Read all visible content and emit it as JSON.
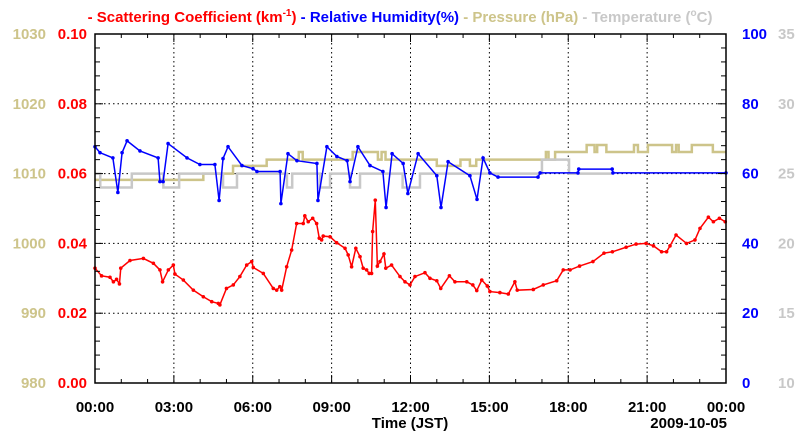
{
  "chart_data": {
    "type": "line",
    "legend_placement": "top",
    "legend": [
      {
        "prefix": "- ",
        "label": "Scattering Coefficient (km",
        "sup": "-1",
        "suffix": ")",
        "color": "#ff0000"
      },
      {
        "prefix": " - ",
        "label": "Relative Humidity(%)",
        "sup": "",
        "suffix": "",
        "color": "#0000ff"
      },
      {
        "prefix": " - ",
        "label": "Pressure (hPa)",
        "sup": "",
        "suffix": "",
        "color": "#cdc48a"
      },
      {
        "prefix": " - ",
        "label": "Temperature (",
        "sup": "o",
        "suffix": "C)",
        "color": "#c8c8c8"
      }
    ],
    "xlabel": "Time (JST)",
    "date_label": "2009-10-05",
    "x_range_hours": [
      0,
      24
    ],
    "x_ticks": [
      "00:00",
      "03:00",
      "06:00",
      "09:00",
      "12:00",
      "15:00",
      "18:00",
      "21:00",
      "00:00"
    ],
    "grid": true,
    "axes": {
      "scattering": {
        "range": [
          0,
          0.1
        ],
        "ticks": [
          "0.00",
          "0.02",
          "0.04",
          "0.06",
          "0.08",
          "0.10"
        ],
        "color": "#ff0000",
        "side": "left-inner"
      },
      "pressure": {
        "range": [
          980,
          1030
        ],
        "ticks": [
          "980",
          "990",
          "1000",
          "1010",
          "1020",
          "1030"
        ],
        "color": "#cdc48a",
        "side": "left-outer"
      },
      "humidity": {
        "range": [
          0,
          100
        ],
        "ticks": [
          "0",
          "20",
          "40",
          "60",
          "80",
          "100"
        ],
        "color": "#0000ff",
        "side": "right-inner"
      },
      "temperature": {
        "range": [
          10,
          35
        ],
        "ticks": [
          "10",
          "15",
          "20",
          "25",
          "30",
          "35"
        ],
        "color": "#c8c8c8",
        "side": "right-outer"
      }
    },
    "series": [
      {
        "name": "Pressure",
        "axis": "pressure",
        "style": "step",
        "end": 24,
        "points": [
          [
            0,
            1009.1
          ],
          [
            4.12,
            1010.0
          ],
          [
            5.25,
            1011.1
          ],
          [
            6.53,
            1012.0
          ],
          [
            7.75,
            1013.1
          ],
          [
            7.9,
            1012.0
          ],
          [
            9.8,
            1013.1
          ],
          [
            10.76,
            1012.0
          ],
          [
            10.9,
            1013.1
          ],
          [
            11.05,
            1012.0
          ],
          [
            13.0,
            1011.1
          ],
          [
            13.9,
            1012.0
          ],
          [
            14.26,
            1011.1
          ],
          [
            14.5,
            1012.0
          ],
          [
            17.15,
            1013.1
          ],
          [
            17.25,
            1012.0
          ],
          [
            17.5,
            1013.1
          ],
          [
            18.7,
            1014.1
          ],
          [
            19.0,
            1013.1
          ],
          [
            19.1,
            1014.1
          ],
          [
            19.45,
            1013.1
          ],
          [
            20.5,
            1014.1
          ],
          [
            20.65,
            1013.1
          ],
          [
            21.03,
            1014.1
          ],
          [
            21.95,
            1013.1
          ],
          [
            22.1,
            1014.1
          ],
          [
            22.2,
            1013.1
          ],
          [
            22.7,
            1014.1
          ],
          [
            23.5,
            1013.1
          ]
        ]
      },
      {
        "name": "Temperature",
        "axis": "temperature",
        "style": "step",
        "end": 19.67,
        "points": [
          [
            0,
            25.0
          ],
          [
            0.2,
            24.0
          ],
          [
            1.4,
            25.0
          ],
          [
            2.6,
            24.0
          ],
          [
            3.2,
            25.0
          ],
          [
            4.87,
            24.0
          ],
          [
            5.4,
            25.0
          ],
          [
            7.3,
            24.0
          ],
          [
            7.5,
            25.0
          ],
          [
            8.56,
            24.0
          ],
          [
            8.94,
            25.0
          ],
          [
            9.7,
            24.0
          ],
          [
            10.08,
            25.0
          ],
          [
            11.7,
            24.0
          ],
          [
            12.36,
            25.0
          ],
          [
            17.0,
            26.0
          ],
          [
            18.03,
            25.0
          ]
        ]
      },
      {
        "name": "Relative Humidity",
        "axis": "humidity",
        "style": "line-markers",
        "points": [
          [
            0,
            67.7
          ],
          [
            0.19,
            66
          ],
          [
            0.68,
            64.5
          ],
          [
            0.87,
            54.6
          ],
          [
            1.03,
            66
          ],
          [
            1.22,
            69.4
          ],
          [
            1.71,
            66.5
          ],
          [
            2.4,
            64.5
          ],
          [
            2.47,
            57.7
          ],
          [
            2.59,
            57.7
          ],
          [
            2.78,
            68.6
          ],
          [
            3.5,
            64.5
          ],
          [
            3.99,
            62.6
          ],
          [
            4.56,
            62.6
          ],
          [
            4.72,
            52.3
          ],
          [
            4.87,
            64.3
          ],
          [
            5.06,
            67.7
          ],
          [
            5.59,
            62.3
          ],
          [
            6.01,
            61.4
          ],
          [
            6.16,
            60.6
          ],
          [
            7.04,
            60.6
          ],
          [
            7.07,
            51.4
          ],
          [
            7.34,
            65.7
          ],
          [
            7.68,
            63.7
          ],
          [
            8.44,
            62.9
          ],
          [
            8.48,
            52.3
          ],
          [
            8.82,
            67.7
          ],
          [
            9.2,
            64.9
          ],
          [
            9.59,
            63.7
          ],
          [
            9.7,
            57.7
          ],
          [
            10.0,
            67.7
          ],
          [
            10.46,
            62.3
          ],
          [
            10.95,
            60.6
          ],
          [
            11.07,
            50.3
          ],
          [
            11.3,
            65.7
          ],
          [
            11.72,
            62.9
          ],
          [
            11.9,
            54.3
          ],
          [
            12.29,
            65.7
          ],
          [
            13.0,
            59.4
          ],
          [
            13.16,
            50.3
          ],
          [
            13.43,
            63.4
          ],
          [
            14.26,
            59.4
          ],
          [
            14.53,
            52.6
          ],
          [
            14.76,
            64.5
          ],
          [
            15.02,
            60.2
          ],
          [
            15.33,
            59
          ],
          [
            16.85,
            59
          ],
          [
            16.93,
            60.2
          ],
          [
            18.37,
            60.2
          ],
          [
            18.4,
            61.3
          ],
          [
            19.67,
            61.3
          ],
          [
            19.7,
            60.2
          ],
          [
            24,
            60.2
          ]
        ]
      },
      {
        "name": "Scattering Coefficient",
        "axis": "scattering",
        "style": "line-markers",
        "points": [
          [
            0,
            0.0329
          ],
          [
            0.25,
            0.0307
          ],
          [
            0.57,
            0.0303
          ],
          [
            0.7,
            0.029
          ],
          [
            0.82,
            0.0297
          ],
          [
            0.93,
            0.0284
          ],
          [
            0.98,
            0.0329
          ],
          [
            1.33,
            0.0351
          ],
          [
            1.84,
            0.0357
          ],
          [
            2.22,
            0.0343
          ],
          [
            2.47,
            0.0324
          ],
          [
            2.57,
            0.029
          ],
          [
            2.79,
            0.0324
          ],
          [
            2.98,
            0.0338
          ],
          [
            3.04,
            0.0312
          ],
          [
            3.36,
            0.0295
          ],
          [
            3.74,
            0.0266
          ],
          [
            4.12,
            0.0247
          ],
          [
            4.44,
            0.0233
          ],
          [
            4.69,
            0.0228
          ],
          [
            4.75,
            0.0224
          ],
          [
            5.0,
            0.0271
          ],
          [
            5.26,
            0.0281
          ],
          [
            5.51,
            0.0305
          ],
          [
            5.77,
            0.0338
          ],
          [
            5.96,
            0.0348
          ],
          [
            6.02,
            0.0331
          ],
          [
            6.4,
            0.0314
          ],
          [
            6.78,
            0.0271
          ],
          [
            6.91,
            0.0266
          ],
          [
            7.03,
            0.0276
          ],
          [
            7.1,
            0.0266
          ],
          [
            7.29,
            0.0333
          ],
          [
            7.48,
            0.0381
          ],
          [
            7.67,
            0.0457
          ],
          [
            7.92,
            0.0457
          ],
          [
            7.98,
            0.0479
          ],
          [
            8.11,
            0.0462
          ],
          [
            8.28,
            0.0472
          ],
          [
            8.43,
            0.0457
          ],
          [
            8.53,
            0.0415
          ],
          [
            8.62,
            0.041
          ],
          [
            8.68,
            0.0421
          ],
          [
            8.94,
            0.0419
          ],
          [
            9.19,
            0.0402
          ],
          [
            9.51,
            0.0386
          ],
          [
            9.63,
            0.0367
          ],
          [
            9.76,
            0.0333
          ],
          [
            9.92,
            0.0386
          ],
          [
            10.08,
            0.0362
          ],
          [
            10.2,
            0.0329
          ],
          [
            10.33,
            0.0324
          ],
          [
            10.43,
            0.0314
          ],
          [
            10.52,
            0.0314
          ],
          [
            10.56,
            0.0434
          ],
          [
            10.66,
            0.0524
          ],
          [
            10.74,
            0.0335
          ],
          [
            10.84,
            0.0348
          ],
          [
            10.99,
            0.037
          ],
          [
            11.06,
            0.0329
          ],
          [
            11.28,
            0.0338
          ],
          [
            11.6,
            0.0305
          ],
          [
            11.79,
            0.029
          ],
          [
            11.98,
            0.0281
          ],
          [
            12.17,
            0.0305
          ],
          [
            12.55,
            0.0316
          ],
          [
            12.74,
            0.03
          ],
          [
            13.0,
            0.0293
          ],
          [
            13.15,
            0.0271
          ],
          [
            13.48,
            0.0307
          ],
          [
            13.69,
            0.029
          ],
          [
            14.14,
            0.029
          ],
          [
            14.37,
            0.0281
          ],
          [
            14.52,
            0.0265
          ],
          [
            14.71,
            0.0295
          ],
          [
            14.92,
            0.0278
          ],
          [
            15.02,
            0.0262
          ],
          [
            15.4,
            0.0259
          ],
          [
            15.72,
            0.0255
          ],
          [
            15.97,
            0.029
          ],
          [
            16.06,
            0.0266
          ],
          [
            16.67,
            0.0268
          ],
          [
            17.05,
            0.0281
          ],
          [
            17.56,
            0.0293
          ],
          [
            17.81,
            0.0324
          ],
          [
            18.07,
            0.0324
          ],
          [
            18.43,
            0.0335
          ],
          [
            18.94,
            0.0348
          ],
          [
            19.36,
            0.0372
          ],
          [
            19.68,
            0.0376
          ],
          [
            20.2,
            0.0389
          ],
          [
            20.58,
            0.0398
          ],
          [
            20.96,
            0.04
          ],
          [
            21.24,
            0.0393
          ],
          [
            21.55,
            0.0376
          ],
          [
            21.74,
            0.0376
          ],
          [
            21.87,
            0.0393
          ],
          [
            22.1,
            0.0424
          ],
          [
            22.5,
            0.04
          ],
          [
            22.82,
            0.041
          ],
          [
            23.01,
            0.0443
          ],
          [
            23.33,
            0.0475
          ],
          [
            23.52,
            0.0462
          ],
          [
            23.75,
            0.0472
          ],
          [
            23.97,
            0.0462
          ]
        ]
      }
    ]
  }
}
